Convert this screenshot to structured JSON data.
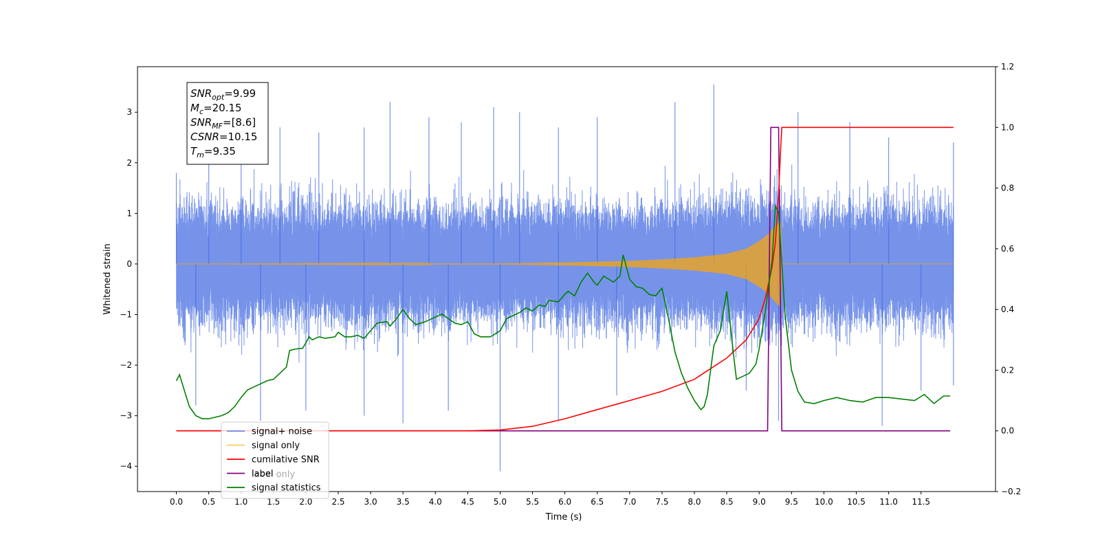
{
  "chart_data": {
    "type": "line",
    "xlabel": "Time (s)",
    "ylabel_left": "Whitened strain",
    "ylabel_right": "",
    "xlim": [
      -0.6,
      12.65
    ],
    "ylim_left": [
      -4.5,
      3.9
    ],
    "ylim_right": [
      -0.2,
      1.2
    ],
    "x_ticks": [
      "0.0",
      "0.5",
      "1.0",
      "1.5",
      "2.0",
      "2.5",
      "3.0",
      "3.5",
      "4.0",
      "4.5",
      "5.0",
      "5.5",
      "6.0",
      "6.5",
      "7.0",
      "7.5",
      "8.0",
      "8.5",
      "9.0",
      "9.5",
      "10.0",
      "10.5",
      "11.0",
      "11.5"
    ],
    "y_ticks_left": [
      "−4",
      "−3",
      "−2",
      "−1",
      "0",
      "1",
      "2",
      "3"
    ],
    "y_ticks_right": [
      "−0.2",
      "0.0",
      "0.2",
      "0.4",
      "0.6",
      "0.8",
      "1.0",
      "1.2"
    ],
    "grid": false,
    "legend_position": "lower-left",
    "annotation": [
      {
        "base": "SNR",
        "sub": "opt",
        "value": "=9.99"
      },
      {
        "base": "M",
        "sub": "c",
        "value": "=20.15"
      },
      {
        "base": "SNR",
        "sub": "MF",
        "value": "=[8.6]"
      },
      {
        "base": "CSNR",
        "sub": "",
        "value": "=10.15"
      },
      {
        "base": "T",
        "sub": "m",
        "value": "=9.35"
      }
    ],
    "series": [
      {
        "name": "signal+ noise",
        "color": "#4169e1",
        "axis": "left",
        "kind": "noise",
        "x_range": [
          0.0,
          12.0
        ],
        "typical_amplitude": 1.3,
        "peaks": [
          {
            "x": 0.0,
            "y": 1.8
          },
          {
            "x": 0.5,
            "y": 2.6
          },
          {
            "x": 1.0,
            "y": 2.5
          },
          {
            "x": 1.6,
            "y": 2.7
          },
          {
            "x": 2.2,
            "y": 2.6
          },
          {
            "x": 2.9,
            "y": 2.7
          },
          {
            "x": 3.3,
            "y": 3.2
          },
          {
            "x": 3.9,
            "y": 2.9
          },
          {
            "x": 4.4,
            "y": 2.8
          },
          {
            "x": 4.9,
            "y": 3.1
          },
          {
            "x": 5.3,
            "y": 3.0
          },
          {
            "x": 5.9,
            "y": 2.7
          },
          {
            "x": 6.5,
            "y": 2.9
          },
          {
            "x": 7.7,
            "y": 3.2
          },
          {
            "x": 8.3,
            "y": 3.55
          },
          {
            "x": 9.6,
            "y": 3.0
          },
          {
            "x": 10.4,
            "y": 2.8
          },
          {
            "x": 11.0,
            "y": 2.5
          },
          {
            "x": 12.0,
            "y": 2.4
          }
        ],
        "troughs": [
          {
            "x": 0.3,
            "y": -2.8
          },
          {
            "x": 1.3,
            "y": -3.1
          },
          {
            "x": 2.0,
            "y": -2.9
          },
          {
            "x": 2.9,
            "y": -3.0
          },
          {
            "x": 3.5,
            "y": -3.15
          },
          {
            "x": 4.2,
            "y": -2.9
          },
          {
            "x": 5.0,
            "y": -4.1
          },
          {
            "x": 5.9,
            "y": -3.1
          },
          {
            "x": 6.8,
            "y": -2.6
          },
          {
            "x": 8.8,
            "y": -2.5
          },
          {
            "x": 9.3,
            "y": -3.1
          },
          {
            "x": 10.9,
            "y": -3.2
          },
          {
            "x": 11.5,
            "y": -2.5
          },
          {
            "x": 12.0,
            "y": -2.4
          }
        ]
      },
      {
        "name": "signal only",
        "color": "#ffa500",
        "axis": "left",
        "kind": "chirp",
        "x_range": [
          0.0,
          12.0
        ],
        "merger_time": 9.35,
        "envelope": [
          {
            "x": 0.0,
            "y": 0.0
          },
          {
            "x": 5.0,
            "y": 0.01
          },
          {
            "x": 6.0,
            "y": 0.03
          },
          {
            "x": 7.0,
            "y": 0.06
          },
          {
            "x": 7.5,
            "y": 0.09
          },
          {
            "x": 8.0,
            "y": 0.13
          },
          {
            "x": 8.5,
            "y": 0.2
          },
          {
            "x": 8.8,
            "y": 0.3
          },
          {
            "x": 9.0,
            "y": 0.45
          },
          {
            "x": 9.15,
            "y": 0.6
          },
          {
            "x": 9.25,
            "y": 0.75
          },
          {
            "x": 9.33,
            "y": 0.85
          },
          {
            "x": 9.36,
            "y": 0.0
          },
          {
            "x": 12.0,
            "y": 0.0
          }
        ]
      },
      {
        "name": "cumilative SNR",
        "color": "#ff0000",
        "axis": "right",
        "points": [
          [
            0.0,
            0.0
          ],
          [
            4.5,
            0.0
          ],
          [
            5.0,
            0.003
          ],
          [
            5.5,
            0.015
          ],
          [
            6.0,
            0.04
          ],
          [
            6.5,
            0.07
          ],
          [
            7.0,
            0.1
          ],
          [
            7.5,
            0.13
          ],
          [
            8.0,
            0.17
          ],
          [
            8.5,
            0.24
          ],
          [
            8.8,
            0.3
          ],
          [
            9.0,
            0.37
          ],
          [
            9.1,
            0.44
          ],
          [
            9.2,
            0.54
          ],
          [
            9.25,
            0.62
          ],
          [
            9.3,
            0.78
          ],
          [
            9.33,
            0.92
          ],
          [
            9.35,
            1.0
          ],
          [
            12.0,
            1.0
          ]
        ]
      },
      {
        "name": "label",
        "color": "#800080",
        "axis": "right",
        "points": [
          [
            0.0,
            0.0
          ],
          [
            9.13,
            0.0
          ],
          [
            9.18,
            1.0
          ],
          [
            9.3,
            1.0
          ],
          [
            9.35,
            0.0
          ],
          [
            11.95,
            0.0
          ]
        ]
      },
      {
        "name": "signal statistics",
        "color": "#008000",
        "axis": "right",
        "points": [
          [
            0.0,
            0.165
          ],
          [
            0.05,
            0.185
          ],
          [
            0.1,
            0.15
          ],
          [
            0.2,
            0.08
          ],
          [
            0.3,
            0.05
          ],
          [
            0.4,
            0.04
          ],
          [
            0.5,
            0.04
          ],
          [
            0.6,
            0.045
          ],
          [
            0.7,
            0.05
          ],
          [
            0.8,
            0.06
          ],
          [
            0.9,
            0.08
          ],
          [
            1.0,
            0.11
          ],
          [
            1.1,
            0.135
          ],
          [
            1.2,
            0.145
          ],
          [
            1.3,
            0.155
          ],
          [
            1.4,
            0.165
          ],
          [
            1.5,
            0.17
          ],
          [
            1.6,
            0.19
          ],
          [
            1.7,
            0.21
          ],
          [
            1.75,
            0.265
          ],
          [
            1.85,
            0.27
          ],
          [
            1.95,
            0.272
          ],
          [
            2.0,
            0.29
          ],
          [
            2.05,
            0.31
          ],
          [
            2.1,
            0.3
          ],
          [
            2.2,
            0.31
          ],
          [
            2.3,
            0.305
          ],
          [
            2.45,
            0.31
          ],
          [
            2.5,
            0.325
          ],
          [
            2.6,
            0.31
          ],
          [
            2.7,
            0.31
          ],
          [
            2.8,
            0.315
          ],
          [
            2.9,
            0.305
          ],
          [
            3.0,
            0.33
          ],
          [
            3.1,
            0.355
          ],
          [
            3.25,
            0.36
          ],
          [
            3.3,
            0.345
          ],
          [
            3.4,
            0.37
          ],
          [
            3.5,
            0.4
          ],
          [
            3.6,
            0.37
          ],
          [
            3.7,
            0.35
          ],
          [
            3.85,
            0.36
          ],
          [
            4.0,
            0.375
          ],
          [
            4.1,
            0.385
          ],
          [
            4.2,
            0.37
          ],
          [
            4.3,
            0.355
          ],
          [
            4.4,
            0.35
          ],
          [
            4.5,
            0.36
          ],
          [
            4.6,
            0.32
          ],
          [
            4.7,
            0.31
          ],
          [
            4.85,
            0.31
          ],
          [
            5.0,
            0.33
          ],
          [
            5.1,
            0.37
          ],
          [
            5.2,
            0.38
          ],
          [
            5.3,
            0.39
          ],
          [
            5.4,
            0.405
          ],
          [
            5.5,
            0.395
          ],
          [
            5.6,
            0.415
          ],
          [
            5.7,
            0.41
          ],
          [
            5.75,
            0.43
          ],
          [
            5.9,
            0.425
          ],
          [
            6.0,
            0.45
          ],
          [
            6.05,
            0.46
          ],
          [
            6.15,
            0.445
          ],
          [
            6.25,
            0.49
          ],
          [
            6.35,
            0.52
          ],
          [
            6.45,
            0.49
          ],
          [
            6.5,
            0.48
          ],
          [
            6.6,
            0.51
          ],
          [
            6.75,
            0.49
          ],
          [
            6.85,
            0.51
          ],
          [
            6.9,
            0.58
          ],
          [
            7.0,
            0.5
          ],
          [
            7.1,
            0.475
          ],
          [
            7.2,
            0.47
          ],
          [
            7.3,
            0.45
          ],
          [
            7.4,
            0.445
          ],
          [
            7.5,
            0.47
          ],
          [
            7.6,
            0.37
          ],
          [
            7.7,
            0.26
          ],
          [
            7.8,
            0.19
          ],
          [
            7.9,
            0.14
          ],
          [
            8.0,
            0.1
          ],
          [
            8.1,
            0.07
          ],
          [
            8.15,
            0.08
          ],
          [
            8.2,
            0.12
          ],
          [
            8.3,
            0.28
          ],
          [
            8.4,
            0.33
          ],
          [
            8.5,
            0.46
          ],
          [
            8.6,
            0.26
          ],
          [
            8.65,
            0.17
          ],
          [
            8.75,
            0.18
          ],
          [
            8.85,
            0.19
          ],
          [
            8.95,
            0.22
          ],
          [
            9.0,
            0.27
          ],
          [
            9.1,
            0.4
          ],
          [
            9.2,
            0.56
          ],
          [
            9.25,
            0.74
          ],
          [
            9.3,
            0.72
          ],
          [
            9.35,
            0.55
          ],
          [
            9.4,
            0.38
          ],
          [
            9.5,
            0.2
          ],
          [
            9.6,
            0.13
          ],
          [
            9.7,
            0.095
          ],
          [
            9.85,
            0.09
          ],
          [
            10.0,
            0.1
          ],
          [
            10.2,
            0.11
          ],
          [
            10.4,
            0.1
          ],
          [
            10.6,
            0.095
          ],
          [
            10.8,
            0.11
          ],
          [
            11.0,
            0.11
          ],
          [
            11.2,
            0.105
          ],
          [
            11.4,
            0.1
          ],
          [
            11.55,
            0.12
          ],
          [
            11.7,
            0.09
          ],
          [
            11.85,
            0.115
          ],
          [
            11.95,
            0.115
          ]
        ]
      }
    ],
    "legend_entries": [
      "signal+ noise",
      "signal only",
      "cumilative SNR",
      "label",
      "signal statistics"
    ],
    "hidden_legend_text": [
      "label only"
    ]
  }
}
